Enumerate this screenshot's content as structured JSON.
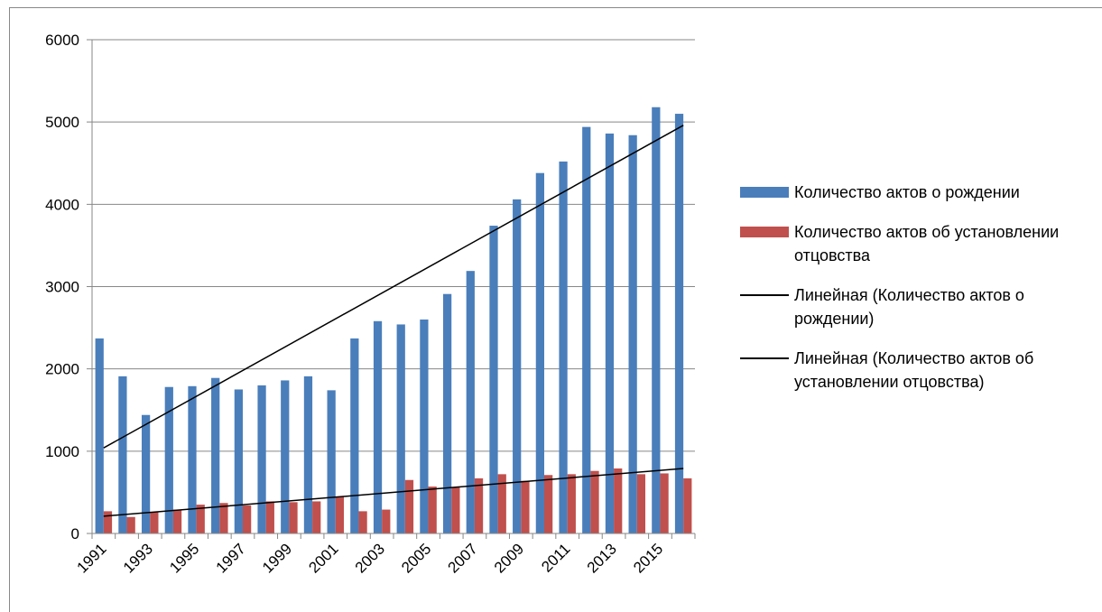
{
  "chart_data": {
    "type": "bar",
    "categories": [
      "1991",
      null,
      "1993",
      null,
      "1995",
      null,
      "1997",
      null,
      "1999",
      null,
      "2001",
      null,
      "2003",
      null,
      "2005",
      null,
      "2007",
      null,
      "2009",
      null,
      "2011",
      null,
      "2013",
      null,
      "2015",
      null
    ],
    "series": [
      {
        "name": "Количество актов о рождении",
        "color": "#4a7ebb",
        "values": [
          2370,
          1910,
          1440,
          1780,
          1790,
          1890,
          1750,
          1800,
          1860,
          1910,
          1740,
          2370,
          2580,
          2540,
          2600,
          2910,
          3190,
          3740,
          4060,
          4380,
          4520,
          4940,
          4860,
          4840,
          5180,
          5100
        ]
      },
      {
        "name": "Количество актов об установлении отцовства",
        "color": "#c0504d",
        "values": [
          270,
          200,
          260,
          290,
          350,
          370,
          340,
          390,
          380,
          390,
          450,
          270,
          290,
          650,
          570,
          560,
          670,
          720,
          640,
          710,
          720,
          760,
          790,
          720,
          730,
          670
        ]
      }
    ],
    "trendlines": [
      {
        "name": "Линейная (Количество актов о рождении)",
        "color": "#000000",
        "start": 1040,
        "end": 4960
      },
      {
        "name": "Линейная (Количество актов об установлении отцовства)",
        "color": "#000000",
        "start": 210,
        "end": 790
      }
    ],
    "ylim": [
      0,
      6000
    ],
    "yticks": [
      0,
      1000,
      2000,
      3000,
      4000,
      5000,
      6000
    ],
    "grid": true
  }
}
